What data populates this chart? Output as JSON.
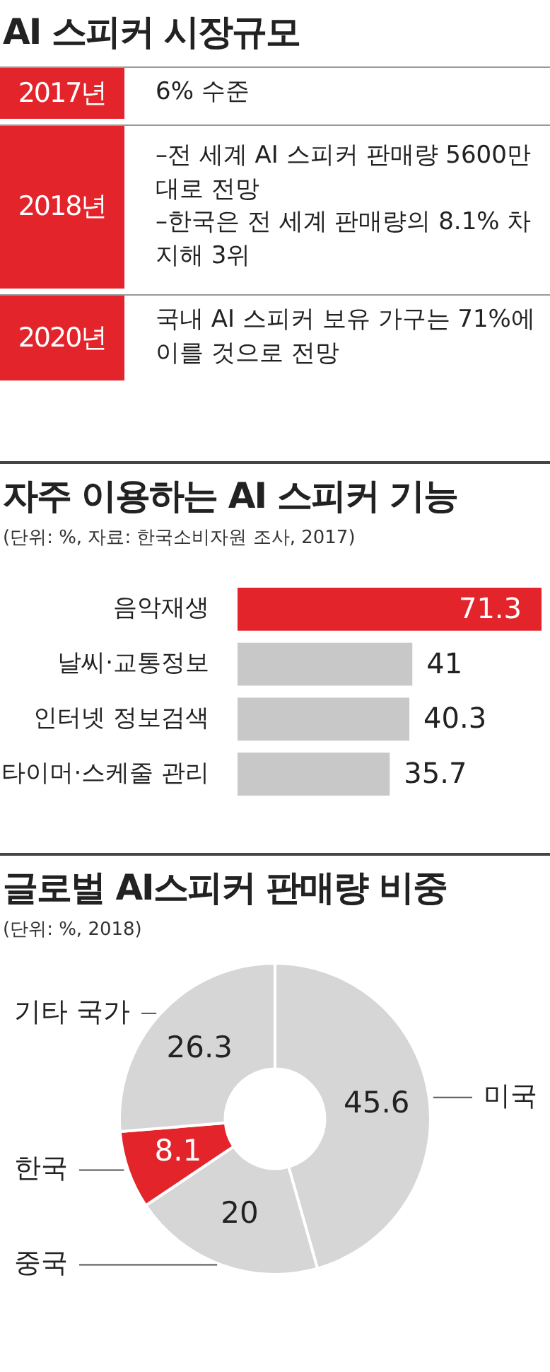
{
  "chart_data": [
    {
      "type": "other",
      "title": "AI 스피커 시장규모",
      "categories": [
        "2017년",
        "2018년",
        "2020년"
      ],
      "annotations": [
        "6% 수준",
        "–전 세계 AI 스피커 판매량 5600만대로 전망\n–한국은 전 세계 판매량의 8.1% 차지해 3위",
        "국내 AI 스피커 보유 가구는 71%에 이를 것으로 전망"
      ],
      "color": "#e3242b"
    },
    {
      "type": "bar",
      "orientation": "horizontal",
      "title": "자주 이용하는 AI 스피커 기능",
      "subtitle": "(단위: %, 자료: 한국소비자원 조사, 2017)",
      "categories": [
        "음악재생",
        "날씨·교통정보",
        "인터넷 정보검색",
        "타이머·스케줄 관리"
      ],
      "values": [
        71.3,
        41,
        40.3,
        35.7
      ],
      "colors": [
        "#e3242b",
        "#c8c8c8",
        "#c8c8c8",
        "#c8c8c8"
      ],
      "data_labels": true,
      "legend": false,
      "grid": false
    },
    {
      "type": "donut",
      "title": "글로벌 AI스피커 판매량 비중",
      "subtitle": "(단위: %, 2018)",
      "categories": [
        "미국",
        "중국",
        "한국",
        "기타 국가"
      ],
      "values": [
        45.6,
        20,
        8.1,
        26.3
      ],
      "colors": [
        "#d6d6d6",
        "#d6d6d6",
        "#e3242b",
        "#d6d6d6"
      ],
      "data_labels": true,
      "legend": false
    }
  ]
}
